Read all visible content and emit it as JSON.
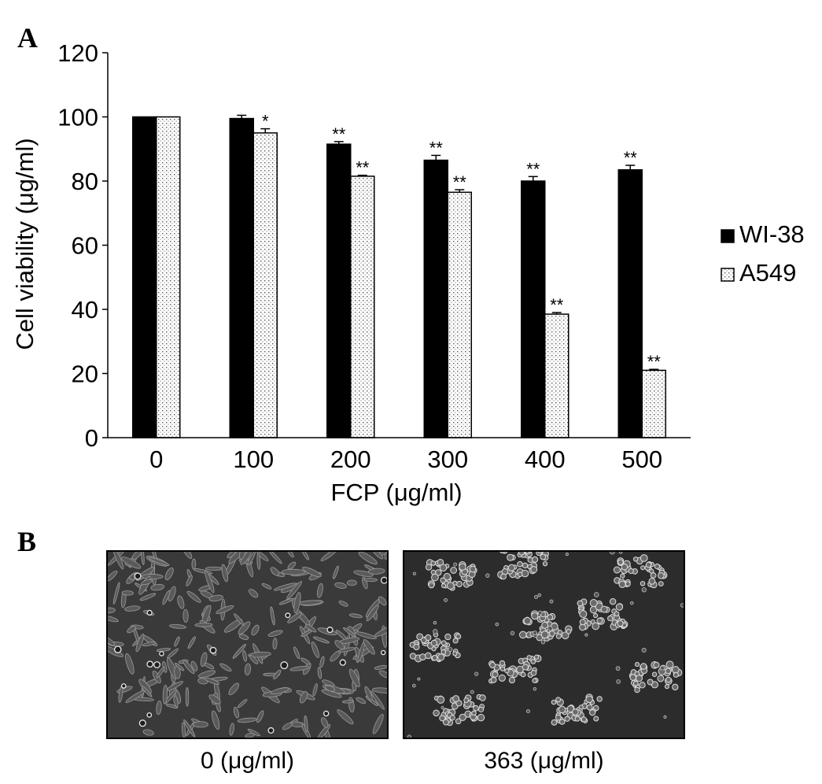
{
  "panel_a_label": "A",
  "panel_b_label": "B",
  "chart_data": {
    "type": "bar",
    "xlabel": "FCP (μg/ml)",
    "ylabel": "Cell viability (μg/ml)",
    "categories": [
      "0",
      "100",
      "200",
      "300",
      "400",
      "500"
    ],
    "ylim": [
      0,
      120
    ],
    "yticks": [
      0,
      20,
      40,
      60,
      80,
      100,
      120
    ],
    "grid": false,
    "legend_position": "right",
    "series": [
      {
        "name": "WI-38",
        "fill": "solid",
        "color": "#000000",
        "values": [
          100,
          99.5,
          91.5,
          86.5,
          80,
          83.5
        ],
        "errors": [
          0,
          1.0,
          0.8,
          1.5,
          1.4,
          1.4
        ],
        "annotations": [
          "",
          "",
          "**",
          "**",
          "**",
          "**"
        ]
      },
      {
        "name": "A549",
        "fill": "dotted",
        "color": "#ffffff",
        "values": [
          100,
          95,
          81.5,
          76.5,
          38.5,
          21
        ],
        "errors": [
          0,
          1.3,
          0.3,
          0.8,
          0.5,
          0.3
        ],
        "annotations": [
          "",
          "*",
          "**",
          "**",
          "**",
          "**"
        ]
      }
    ]
  },
  "images": [
    {
      "caption": "0 (μg/ml)",
      "icon": "sparse-elongated-cells-micrograph"
    },
    {
      "caption": "363 (μg/ml)",
      "icon": "clustered-rounded-cells-micrograph"
    }
  ]
}
